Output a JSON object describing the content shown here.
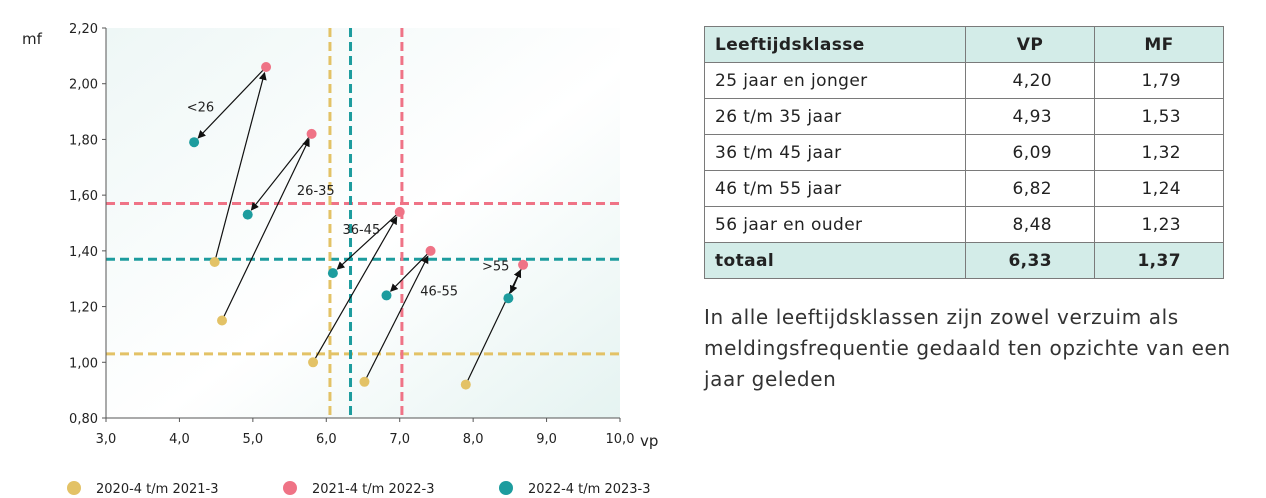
{
  "chart_data": {
    "type": "scatter",
    "xlabel": "vp",
    "ylabel": "mf",
    "xlim": [
      3.0,
      10.0
    ],
    "ylim": [
      0.8,
      2.2
    ],
    "grid": false,
    "x_ticks": [
      "3,0",
      "4,0",
      "5,0",
      "6,0",
      "7,0",
      "8,0",
      "9,0",
      "10,0"
    ],
    "y_ticks": [
      "0,80",
      "1,00",
      "1,20",
      "1,40",
      "1,60",
      "1,80",
      "2,00",
      "2,20"
    ],
    "legend_position": "bottom",
    "series": [
      {
        "name": "2020-4 t/m 2021-3",
        "color": "#e3c266",
        "points": [
          [
            4.48,
            1.36
          ],
          [
            4.58,
            1.15
          ],
          [
            5.82,
            1.0
          ],
          [
            6.52,
            0.93
          ],
          [
            7.9,
            0.92
          ]
        ]
      },
      {
        "name": "2021-4 t/m 2022-3",
        "color": "#ef7386",
        "points": [
          [
            5.18,
            2.06
          ],
          [
            5.8,
            1.82
          ],
          [
            7.0,
            1.54
          ],
          [
            7.42,
            1.4
          ],
          [
            8.68,
            1.35
          ]
        ]
      },
      {
        "name": "2022-4 t/m 2023-3",
        "color": "#1d9c9e",
        "points": [
          [
            4.2,
            1.79
          ],
          [
            4.93,
            1.53
          ],
          [
            6.09,
            1.32
          ],
          [
            6.82,
            1.24
          ],
          [
            8.48,
            1.23
          ]
        ]
      }
    ],
    "reference_lines": [
      {
        "orientation": "horizontal",
        "value": 1.03,
        "color": "#e3c266"
      },
      {
        "orientation": "horizontal",
        "value": 1.57,
        "color": "#ef7386"
      },
      {
        "orientation": "horizontal",
        "value": 1.37,
        "color": "#1d9c9e"
      },
      {
        "orientation": "vertical",
        "value": 6.05,
        "color": "#e3c266"
      },
      {
        "orientation": "vertical",
        "value": 7.03,
        "color": "#ef7386"
      },
      {
        "orientation": "vertical",
        "value": 6.33,
        "color": "#1d9c9e"
      }
    ],
    "arrows": [
      {
        "from": [
          4.48,
          1.36
        ],
        "to": [
          5.18,
          2.06
        ]
      },
      {
        "from": [
          5.18,
          2.06
        ],
        "to": [
          4.2,
          1.79
        ]
      },
      {
        "from": [
          4.58,
          1.15
        ],
        "to": [
          5.8,
          1.82
        ]
      },
      {
        "from": [
          5.8,
          1.82
        ],
        "to": [
          4.93,
          1.53
        ]
      },
      {
        "from": [
          5.82,
          1.0
        ],
        "to": [
          7.0,
          1.54
        ]
      },
      {
        "from": [
          7.0,
          1.54
        ],
        "to": [
          6.09,
          1.32
        ]
      },
      {
        "from": [
          6.52,
          0.93
        ],
        "to": [
          7.42,
          1.4
        ]
      },
      {
        "from": [
          7.42,
          1.4
        ],
        "to": [
          6.82,
          1.24
        ]
      },
      {
        "from": [
          7.9,
          0.92
        ],
        "to": [
          8.68,
          1.35
        ]
      },
      {
        "from": [
          8.68,
          1.35
        ],
        "to": [
          8.48,
          1.23
        ]
      }
    ],
    "annotations": [
      {
        "text": "<26",
        "x": 4.1,
        "y": 1.9
      },
      {
        "text": "26-35",
        "x": 5.6,
        "y": 1.6
      },
      {
        "text": "36-45",
        "x": 6.22,
        "y": 1.46
      },
      {
        "text": "46-55",
        "x": 7.28,
        "y": 1.24
      },
      {
        "text": ">55",
        "x": 8.12,
        "y": 1.33
      }
    ]
  },
  "table": {
    "headers": [
      "Leeftijdsklasse",
      "VP",
      "MF"
    ],
    "rows": [
      {
        "label": "25 jaar en jonger",
        "vp": "4,20",
        "mf": "1,79"
      },
      {
        "label": "26 t/m 35 jaar",
        "vp": "4,93",
        "mf": "1,53"
      },
      {
        "label": "36 t/m 45 jaar",
        "vp": "6,09",
        "mf": "1,32"
      },
      {
        "label": "46 t/m 55 jaar",
        "vp": "6,82",
        "mf": "1,24"
      },
      {
        "label": "56 jaar en ouder",
        "vp": "8,48",
        "mf": "1,23"
      }
    ],
    "total": {
      "label": "totaal",
      "vp": "6,33",
      "mf": "1,37"
    }
  },
  "note": "In alle leeftijdsklassen zijn zowel verzuim als meldingsfrequentie gedaald ten opzichte van een jaar geleden"
}
